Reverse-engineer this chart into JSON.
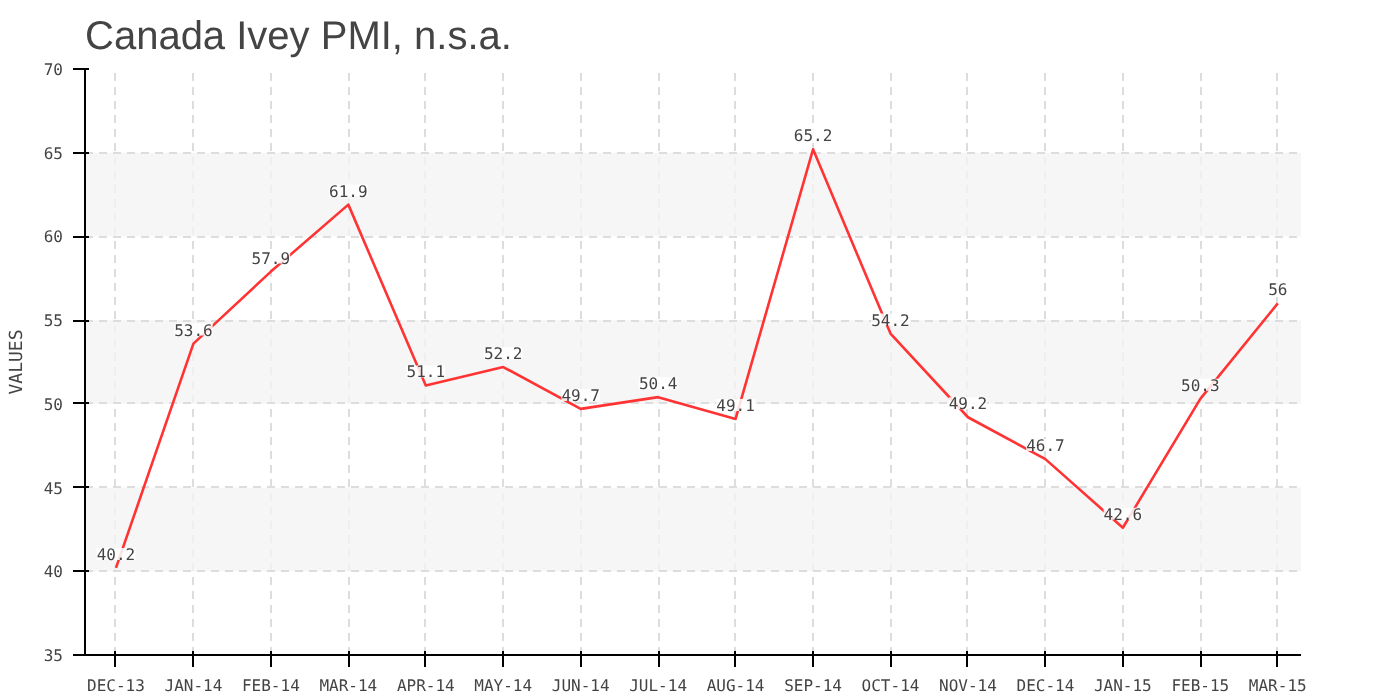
{
  "chart_data": {
    "type": "line",
    "title": "Canada Ivey PMI, n.s.a.",
    "ylabel": "VALUES",
    "categories": [
      "DEC-13",
      "JAN-14",
      "FEB-14",
      "MAR-14",
      "APR-14",
      "MAY-14",
      "JUN-14",
      "JUL-14",
      "AUG-14",
      "SEP-14",
      "OCT-14",
      "NOV-14",
      "DEC-14",
      "JAN-15",
      "FEB-15",
      "MAR-15"
    ],
    "series": [
      {
        "color": "#ff3333",
        "values": [
          40.2,
          53.6,
          57.9,
          61.9,
          51.1,
          52.2,
          49.7,
          50.4,
          49.1,
          65.2,
          54.2,
          49.2,
          46.7,
          42.6,
          50.3,
          56
        ]
      }
    ],
    "ylim": [
      35,
      70
    ],
    "yticks": [
      35,
      40,
      45,
      50,
      55,
      60,
      65,
      70
    ],
    "grid": true,
    "data_labels": true,
    "line_style": "solid"
  }
}
